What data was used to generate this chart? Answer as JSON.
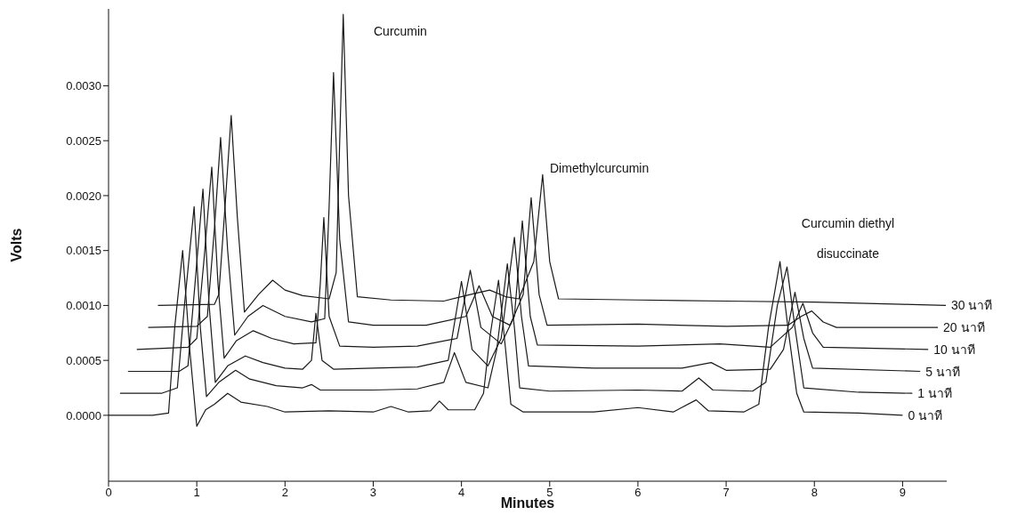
{
  "chart_data": {
    "type": "line",
    "xlabel": "Minutes",
    "ylabel": "Volts",
    "legend": false,
    "grid": false,
    "marker": "none",
    "line_style": "solid",
    "xlim": [
      0,
      9.5
    ],
    "xticks": [
      0,
      1,
      2,
      3,
      4,
      5,
      6,
      7,
      8,
      9
    ],
    "ylim": [
      -0.0006,
      0.0037
    ],
    "yticks": [
      {
        "value": 0,
        "label": "0.0000"
      },
      {
        "value": 0.0005,
        "label": "0.0005"
      },
      {
        "value": 0.001,
        "label": "0.0010"
      },
      {
        "value": 0.0015,
        "label": "0.0015"
      },
      {
        "value": 0.002,
        "label": "0.0020"
      },
      {
        "value": 0.0025,
        "label": "0.0025"
      },
      {
        "value": 0.003,
        "label": "0.0030"
      }
    ],
    "annotations": [
      "Curcumin",
      "Dimethylcurcumin",
      "Curcumin diethyl\ndisuccinate"
    ],
    "series": [
      {
        "name": "0 นาที",
        "color": "#1a1a1a",
        "x": [
          0,
          0.5,
          0.68,
          0.75,
          0.84,
          0.92,
          1.0,
          1.1,
          1.2,
          1.35,
          1.5,
          1.8,
          2.0,
          2.5,
          3.0,
          3.2,
          3.4,
          3.65,
          3.75,
          3.85,
          4.15,
          4.25,
          4.32,
          4.42,
          4.5,
          4.56,
          4.7,
          5.5,
          6.0,
          6.4,
          6.66,
          6.8,
          7.2,
          7.37,
          7.48,
          7.61,
          7.7,
          7.8,
          7.88,
          8.5,
          9.0
        ],
        "values": [
          0,
          0,
          2e-05,
          0.0008,
          0.0015,
          0.0006,
          -0.0001,
          5e-05,
          0.0001,
          0.0002,
          0.00012,
          8e-05,
          3e-05,
          4e-05,
          3e-05,
          8e-05,
          3e-05,
          4e-05,
          0.00013,
          5e-05,
          5e-05,
          0.0002,
          0.0007,
          0.00123,
          0.0006,
          0.0001,
          3e-05,
          3e-05,
          7e-05,
          3e-05,
          0.00014,
          4e-05,
          3e-05,
          0.0001,
          0.0008,
          0.0014,
          0.0008,
          0.0002,
          3e-05,
          2e-05,
          0
        ]
      },
      {
        "name": "1 นาที",
        "color": "#1a1a1a",
        "x": [
          0.13,
          0.6,
          0.78,
          0.86,
          0.97,
          1.04,
          1.11,
          1.25,
          1.44,
          1.6,
          1.9,
          2.2,
          2.3,
          2.4,
          3.0,
          3.5,
          3.8,
          3.92,
          4.05,
          4.3,
          4.4,
          4.52,
          4.6,
          4.66,
          5.0,
          6.0,
          6.5,
          6.69,
          6.85,
          7.3,
          7.45,
          7.58,
          7.69,
          7.78,
          7.88,
          8.5,
          9.11
        ],
        "values": [
          0.0002,
          0.0002,
          0.00025,
          0.001,
          0.0019,
          0.0008,
          0.00017,
          0.0003,
          0.00041,
          0.00033,
          0.00027,
          0.00025,
          0.00028,
          0.00023,
          0.00023,
          0.00024,
          0.0003,
          0.00057,
          0.0003,
          0.00025,
          0.0006,
          0.00138,
          0.0008,
          0.00025,
          0.00022,
          0.00023,
          0.00022,
          0.00034,
          0.00023,
          0.00022,
          0.0003,
          0.001,
          0.00135,
          0.0008,
          0.00025,
          0.00021,
          0.0002
        ]
      },
      {
        "name": "5 นาที",
        "color": "#1a1a1a",
        "x": [
          0.22,
          0.8,
          0.9,
          0.98,
          1.07,
          1.14,
          1.21,
          1.35,
          1.55,
          1.75,
          2.0,
          2.2,
          2.3,
          2.35,
          2.42,
          2.55,
          3.0,
          3.5,
          3.85,
          4.0,
          4.12,
          4.3,
          4.45,
          4.6,
          4.68,
          4.76,
          5.5,
          6.5,
          6.83,
          7.0,
          7.5,
          7.65,
          7.78,
          7.88,
          7.98,
          9.2
        ],
        "values": [
          0.0004,
          0.0004,
          0.00045,
          0.0012,
          0.00206,
          0.001,
          0.0003,
          0.00045,
          0.00054,
          0.00048,
          0.00043,
          0.00042,
          0.0005,
          0.00093,
          0.0005,
          0.00042,
          0.00043,
          0.00044,
          0.0005,
          0.00122,
          0.0006,
          0.00045,
          0.0007,
          0.00162,
          0.0009,
          0.00045,
          0.00043,
          0.00043,
          0.00048,
          0.00041,
          0.00042,
          0.0006,
          0.00112,
          0.0007,
          0.00043,
          0.0004
        ]
      },
      {
        "name": "10 นาที",
        "color": "#1a1a1a",
        "x": [
          0.32,
          0.9,
          1.0,
          1.08,
          1.17,
          1.24,
          1.31,
          1.45,
          1.64,
          1.85,
          2.1,
          2.35,
          2.4,
          2.44,
          2.5,
          2.62,
          3.0,
          3.5,
          3.95,
          4.1,
          4.22,
          4.45,
          4.6,
          4.69,
          4.78,
          4.86,
          6.0,
          6.93,
          7.5,
          7.75,
          7.87,
          7.98,
          8.1,
          9.29
        ],
        "values": [
          0.0006,
          0.00062,
          0.0007,
          0.0014,
          0.00226,
          0.0012,
          0.00052,
          0.00068,
          0.00077,
          0.0007,
          0.00065,
          0.00066,
          0.0012,
          0.0018,
          0.0009,
          0.00063,
          0.00062,
          0.00063,
          0.0007,
          0.00132,
          0.0008,
          0.00065,
          0.0009,
          0.00177,
          0.0009,
          0.00064,
          0.00063,
          0.00065,
          0.00062,
          0.0008,
          0.00102,
          0.00075,
          0.00062,
          0.0006
        ]
      },
      {
        "name": "20 นาที",
        "color": "#1a1a1a",
        "x": [
          0.45,
          1.0,
          1.12,
          1.2,
          1.27,
          1.35,
          1.43,
          1.58,
          1.75,
          2.0,
          2.3,
          2.45,
          2.5,
          2.55,
          2.62,
          2.72,
          3.0,
          3.6,
          4.05,
          4.2,
          4.35,
          4.55,
          4.7,
          4.79,
          4.88,
          4.97,
          6.0,
          7.0,
          7.7,
          7.85,
          7.97,
          8.1,
          8.25,
          9.4
        ],
        "values": [
          0.0008,
          0.00081,
          0.0009,
          0.0017,
          0.00253,
          0.0015,
          0.00073,
          0.0009,
          0.001,
          0.0009,
          0.00085,
          0.00088,
          0.0019,
          0.00312,
          0.0016,
          0.00085,
          0.00082,
          0.00082,
          0.0009,
          0.00118,
          0.0009,
          0.00082,
          0.0011,
          0.00198,
          0.0011,
          0.00082,
          0.00083,
          0.00081,
          0.00082,
          0.0009,
          0.00095,
          0.00085,
          0.0008,
          0.0008
        ]
      },
      {
        "name": "30 นาที",
        "color": "#1a1a1a",
        "x": [
          0.56,
          1.2,
          1.25,
          1.32,
          1.39,
          1.46,
          1.54,
          1.7,
          1.86,
          2.0,
          2.2,
          2.5,
          2.58,
          2.62,
          2.66,
          2.72,
          2.82,
          3.2,
          3.8,
          4.1,
          4.32,
          4.5,
          4.65,
          4.82,
          4.92,
          5.0,
          5.1,
          6.0,
          7.0,
          8.0,
          9.0,
          9.49
        ],
        "values": [
          0.001,
          0.00101,
          0.0011,
          0.0019,
          0.00273,
          0.0018,
          0.00094,
          0.0011,
          0.00123,
          0.00114,
          0.00109,
          0.00106,
          0.0013,
          0.0025,
          0.00365,
          0.002,
          0.00108,
          0.00105,
          0.00104,
          0.0011,
          0.00114,
          0.00108,
          0.00106,
          0.0014,
          0.00219,
          0.0014,
          0.00106,
          0.00105,
          0.00104,
          0.00103,
          0.00101,
          0.001
        ]
      }
    ]
  }
}
